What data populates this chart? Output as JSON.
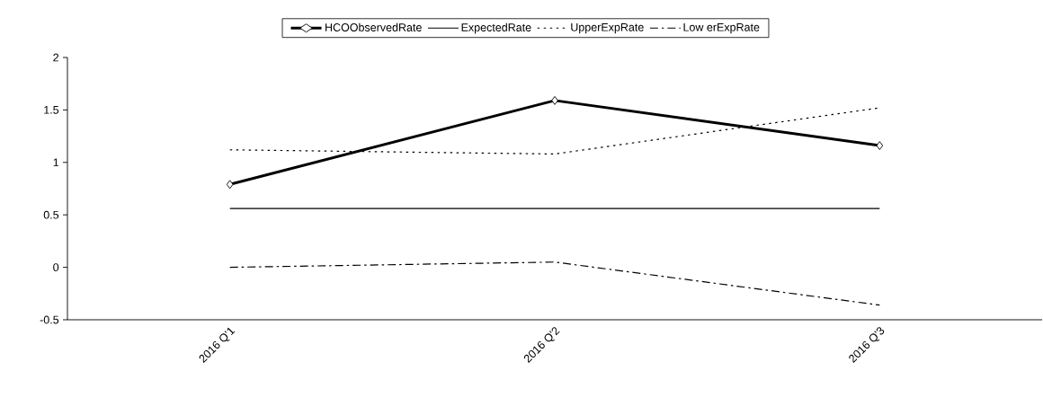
{
  "chart_data": {
    "type": "line",
    "categories": [
      "2016 Q'1",
      "2016 Q'2",
      "2016 Q'3"
    ],
    "series": [
      {
        "name": "HCOObservedRate",
        "color": "#000000",
        "values": [
          0.79,
          1.59,
          1.16
        ],
        "marker": "diamond",
        "line_style": "solid"
      },
      {
        "name": "ExpectedRate",
        "color": "#000000",
        "values": [
          0.56,
          0.56,
          0.56
        ],
        "marker": "none",
        "line_style": "solid"
      },
      {
        "name": "UpperExpRate",
        "color": "#000000",
        "values": [
          1.12,
          1.08,
          1.52
        ],
        "marker": "none",
        "line_style": "dotted"
      },
      {
        "name": "Low erExpRate",
        "color": "#000000",
        "values": [
          0.0,
          0.05,
          -0.36
        ],
        "marker": "none",
        "line_style": "dashdot"
      }
    ],
    "ylim": [
      -0.5,
      2
    ],
    "yticks": [
      -0.5,
      0,
      0.5,
      1,
      1.5,
      2
    ],
    "grid": false,
    "legend": "top"
  }
}
